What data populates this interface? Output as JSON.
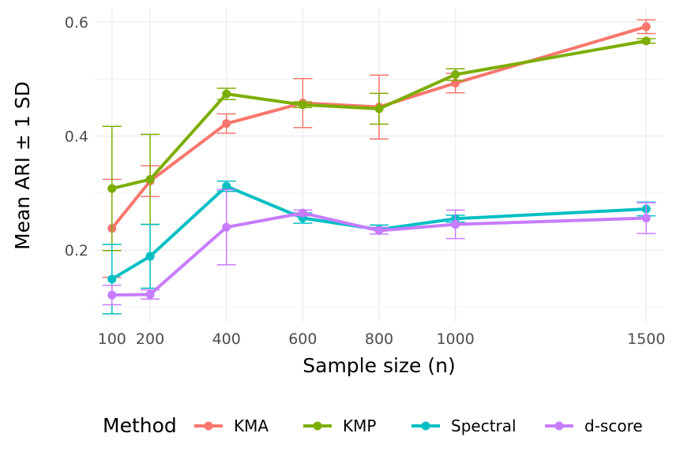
{
  "chart_data": {
    "type": "line",
    "xlabel": "Sample size (n)",
    "ylabel": "Mean ARI ± 1 SD",
    "x": [
      100,
      200,
      400,
      600,
      800,
      1000,
      1500
    ],
    "x_ticks": [
      "100",
      "200",
      "400",
      "600",
      "800",
      "1000",
      "1500"
    ],
    "y_ticks": [
      "0.2",
      "0.4",
      "0.6"
    ],
    "xlim": [
      55,
      1545
    ],
    "ylim": [
      0.074,
      0.625
    ],
    "grid": true,
    "legend": {
      "title": "Method",
      "position": "bottom"
    },
    "series": [
      {
        "name": "KMA",
        "color": "#F8766D",
        "values": [
          0.238,
          0.321,
          0.422,
          0.458,
          0.451,
          0.493,
          0.592
        ],
        "sd": [
          0.086,
          0.027,
          0.017,
          0.043,
          0.056,
          0.017,
          0.012
        ]
      },
      {
        "name": "KMP",
        "color": "#7CAE00",
        "values": [
          0.308,
          0.324,
          0.474,
          0.455,
          0.448,
          0.508,
          0.567
        ],
        "sd": [
          0.109,
          0.079,
          0.01,
          0.005,
          0.027,
          0.01,
          0.004
        ]
      },
      {
        "name": "Spectral",
        "color": "#00BFC4",
        "values": [
          0.149,
          0.189,
          0.312,
          0.256,
          0.236,
          0.255,
          0.272
        ],
        "sd": [
          0.061,
          0.056,
          0.009,
          0.009,
          0.008,
          0.006,
          0.012
        ]
      },
      {
        "name": "d-score",
        "color": "#C77CFF",
        "values": [
          0.121,
          0.122,
          0.24,
          0.265,
          0.234,
          0.245,
          0.256
        ],
        "sd": [
          0.017,
          0.008,
          0.066,
          0.005,
          0.006,
          0.025,
          0.027
        ]
      }
    ]
  }
}
